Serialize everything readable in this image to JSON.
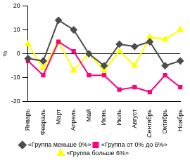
{
  "chart_data": {
    "type": "line",
    "ylabel": "%",
    "categories": [
      "Январь",
      "Февраль",
      "Март",
      "Апрель",
      "Май",
      "Июнь",
      "Июль",
      "Август",
      "Сентябрь",
      "Октябрь",
      "Ноябрь"
    ],
    "series": [
      {
        "name": "«Группа меньше 0%»",
        "color": "#4d4d4d",
        "marker": "diamond",
        "values": [
          -2,
          -3,
          14,
          10,
          0,
          -5,
          4,
          3,
          5,
          -5,
          -3
        ]
      },
      {
        "name": "«Группа от 0% до 6%»",
        "color": "#ff0080",
        "marker": "square",
        "values": [
          -3,
          -9,
          5,
          1,
          -9,
          -9,
          -15,
          -14,
          -16,
          -9,
          -14
        ]
      },
      {
        "name": "«Группа больше 6%»",
        "color": "#ffff00",
        "marker": "triangle",
        "values": [
          4,
          -6,
          5,
          -7,
          0,
          -7,
          1,
          -5,
          7,
          6,
          10
        ]
      }
    ],
    "ylim": [
      -20,
      20
    ],
    "yticks": [
      -20,
      -10,
      0,
      10,
      20
    ],
    "grid": false,
    "legend": "bottom"
  }
}
